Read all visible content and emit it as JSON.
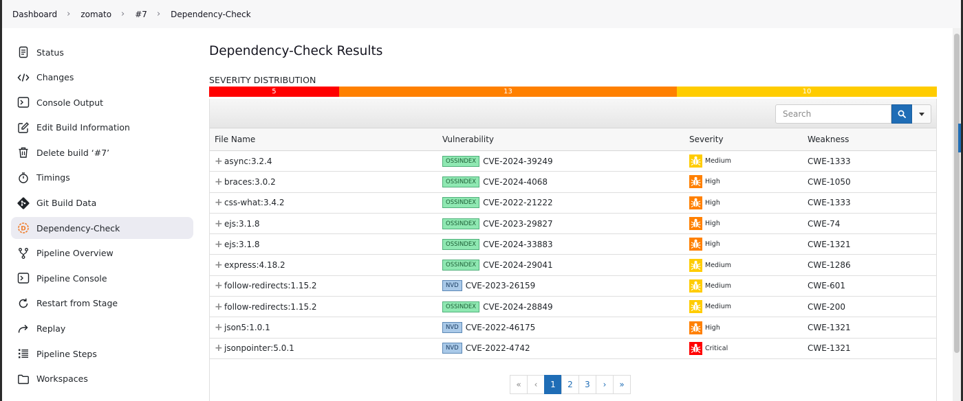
{
  "breadcrumb": [
    "Dashboard",
    "zomato",
    "#7",
    "Dependency-Check"
  ],
  "sidebar": {
    "items": [
      {
        "label": "Status",
        "icon": "status-icon"
      },
      {
        "label": "Changes",
        "icon": "code-icon"
      },
      {
        "label": "Console Output",
        "icon": "terminal-icon"
      },
      {
        "label": "Edit Build Information",
        "icon": "edit-icon"
      },
      {
        "label": "Delete build ‘#7’",
        "icon": "trash-icon"
      },
      {
        "label": "Timings",
        "icon": "stopwatch-icon"
      },
      {
        "label": "Git Build Data",
        "icon": "git-icon"
      },
      {
        "label": "Dependency-Check",
        "icon": "dependency-check-icon",
        "active": true
      },
      {
        "label": "Pipeline Overview",
        "icon": "branch-icon"
      },
      {
        "label": "Pipeline Console",
        "icon": "terminal-icon"
      },
      {
        "label": "Restart from Stage",
        "icon": "restart-icon"
      },
      {
        "label": "Replay",
        "icon": "replay-icon"
      },
      {
        "label": "Pipeline Steps",
        "icon": "list-icon"
      },
      {
        "label": "Workspaces",
        "icon": "folder-icon"
      }
    ]
  },
  "main": {
    "title": "Dependency-Check Results",
    "severity_heading": "SEVERITY DISTRIBUTION",
    "severity_distribution": [
      {
        "label": "5",
        "value": 5,
        "color": "#ff0000"
      },
      {
        "label": "13",
        "value": 13,
        "color": "#ff8000"
      },
      {
        "label": "10",
        "value": 10,
        "color": "#ffcc00"
      }
    ],
    "search_placeholder": "Search",
    "columns": {
      "file": "File Name",
      "vulnerability": "Vulnerability",
      "severity": "Severity",
      "weakness": "Weakness"
    },
    "rows": [
      {
        "file": "async:3.2.4",
        "source": "OSSINDEX",
        "cve": "CVE-2024-39249",
        "severity": "Medium",
        "weakness": "CWE-1333"
      },
      {
        "file": "braces:3.0.2",
        "source": "OSSINDEX",
        "cve": "CVE-2024-4068",
        "severity": "High",
        "weakness": "CWE-1050"
      },
      {
        "file": "css-what:3.4.2",
        "source": "OSSINDEX",
        "cve": "CVE-2022-21222",
        "severity": "High",
        "weakness": "CWE-1333"
      },
      {
        "file": "ejs:3.1.8",
        "source": "OSSINDEX",
        "cve": "CVE-2023-29827",
        "severity": "High",
        "weakness": "CWE-74"
      },
      {
        "file": "ejs:3.1.8",
        "source": "OSSINDEX",
        "cve": "CVE-2024-33883",
        "severity": "High",
        "weakness": "CWE-1321"
      },
      {
        "file": "express:4.18.2",
        "source": "OSSINDEX",
        "cve": "CVE-2024-29041",
        "severity": "Medium",
        "weakness": "CWE-1286"
      },
      {
        "file": "follow-redirects:1.15.2",
        "source": "NVD",
        "cve": "CVE-2023-26159",
        "severity": "Medium",
        "weakness": "CWE-601"
      },
      {
        "file": "follow-redirects:1.15.2",
        "source": "OSSINDEX",
        "cve": "CVE-2024-28849",
        "severity": "Medium",
        "weakness": "CWE-200"
      },
      {
        "file": "json5:1.0.1",
        "source": "NVD",
        "cve": "CVE-2022-46175",
        "severity": "High",
        "weakness": "CWE-1321"
      },
      {
        "file": "jsonpointer:5.0.1",
        "source": "NVD",
        "cve": "CVE-2022-4742",
        "severity": "Critical",
        "weakness": "CWE-1321"
      }
    ],
    "severity_colors": {
      "Critical": "#ff0000",
      "High": "#ff8000",
      "Medium": "#ffcc00"
    },
    "pagination": {
      "first": "«",
      "prev": "‹",
      "pages": [
        "1",
        "2",
        "3"
      ],
      "current": "1",
      "next": "›",
      "last": "»"
    }
  }
}
